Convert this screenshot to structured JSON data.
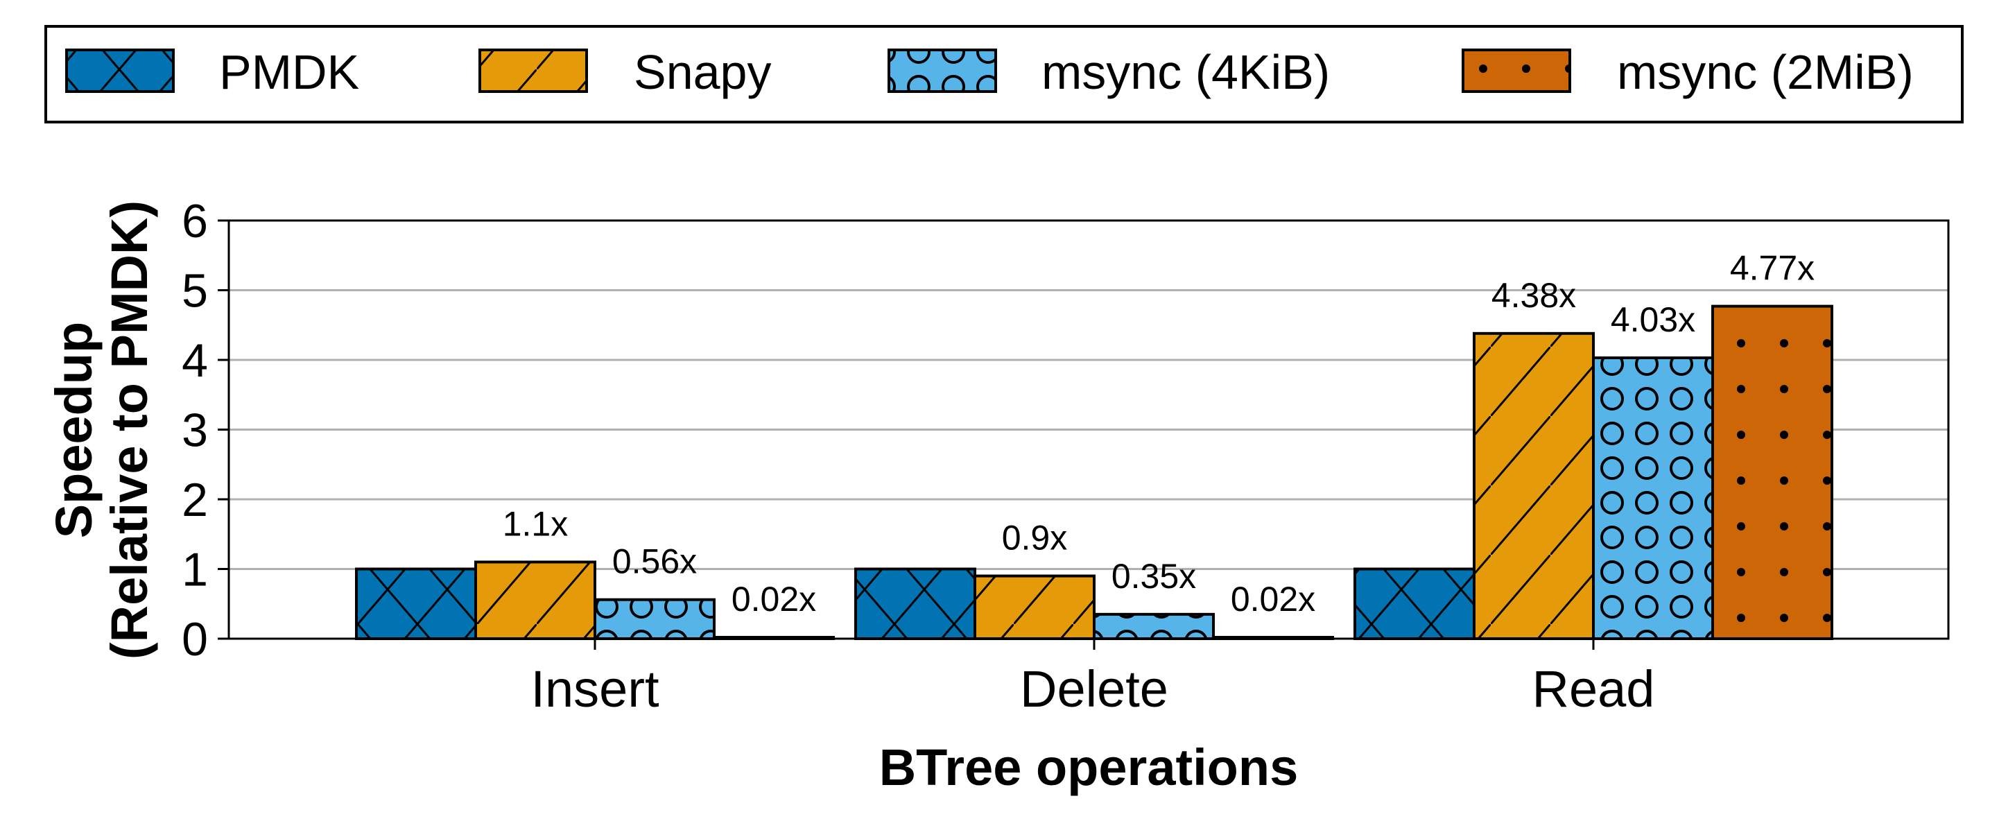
{
  "chart_data": {
    "type": "bar",
    "title": "",
    "xlabel": "BTree operations",
    "ylabel": [
      "Speedup",
      "(Relative to PMDK)"
    ],
    "ylim": [
      0,
      6
    ],
    "yticks": [
      "0",
      "1",
      "2",
      "3",
      "4",
      "5",
      "6"
    ],
    "grid": "horizontal",
    "legend_position": "top",
    "categories": [
      "Insert",
      "Delete",
      "Read"
    ],
    "series": [
      {
        "name": "PMDK",
        "color": "#0173b2",
        "pattern": "crossed-diagonals",
        "values": [
          1.0,
          1.0,
          1.0
        ],
        "labels": [
          "",
          "",
          ""
        ]
      },
      {
        "name": "Snapy",
        "color": "#e59a0a",
        "pattern": "diagonal-lines",
        "values": [
          1.1,
          0.9,
          4.38
        ],
        "labels": [
          "1.1x",
          "0.9x",
          "4.38x"
        ]
      },
      {
        "name": "msync (4KiB)",
        "color": "#56b4e9",
        "pattern": "circles",
        "values": [
          0.56,
          0.35,
          4.03
        ],
        "labels": [
          "0.56x",
          "0.35x",
          "4.03x"
        ]
      },
      {
        "name": "msync (2MiB)",
        "color": "#cc6606",
        "pattern": "dots",
        "values": [
          0.02,
          0.02,
          4.77
        ],
        "labels": [
          "0.02x",
          "0.02x",
          "4.77x"
        ]
      }
    ]
  }
}
